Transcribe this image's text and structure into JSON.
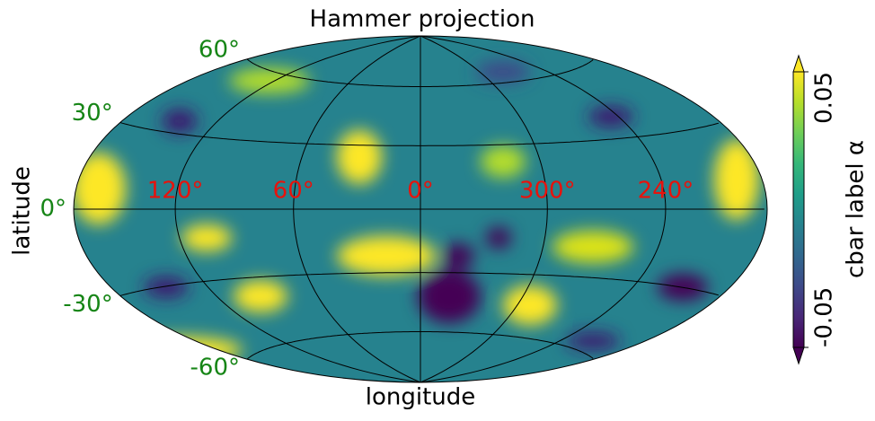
{
  "chart_data": {
    "type": "map",
    "projection": "hammer",
    "title": "Hammer projection",
    "xlabel": "longitude",
    "ylabel": "latitude",
    "lon_ticks": [
      {
        "value": 120,
        "label": "120°"
      },
      {
        "value": 60,
        "label": "60°"
      },
      {
        "value": 0,
        "label": "0°"
      },
      {
        "value": 300,
        "label": "300°"
      },
      {
        "value": 240,
        "label": "240°"
      }
    ],
    "lon_tick_color": "#e8120c",
    "lat_ticks": [
      {
        "value": 60,
        "label": "60°"
      },
      {
        "value": 30,
        "label": "30°"
      },
      {
        "value": 0,
        "label": "0°"
      },
      {
        "value": -30,
        "label": "-30°"
      },
      {
        "value": -60,
        "label": "-60°"
      }
    ],
    "lat_tick_color": "#168516",
    "colormap": "viridis",
    "clim": [
      -0.05,
      0.05
    ],
    "cbar_ticks": [
      -0.05,
      0.05
    ],
    "cbar_extend": "both",
    "cbar_label": "cbar label α"
  }
}
